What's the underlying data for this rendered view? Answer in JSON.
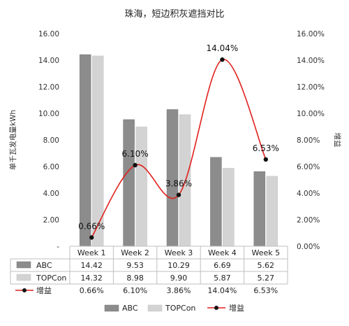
{
  "chart_data": {
    "type": "bar",
    "title": "珠海，短边积灰遮挡对比",
    "ylabel_left": "单千瓦发电量kWh",
    "ylabel_right": "增益",
    "ylim_left": [
      0,
      16
    ],
    "ylim_right": [
      0,
      16
    ],
    "left_ticks": [
      "-",
      "2.00",
      "4.00",
      "6.00",
      "8.00",
      "10.00",
      "12.00",
      "14.00",
      "16.00"
    ],
    "right_ticks": [
      "0.00%",
      "2.00%",
      "4.00%",
      "6.00%",
      "8.00%",
      "10.00%",
      "12.00%",
      "14.00%",
      "16.00%"
    ],
    "categories": [
      "Week 1",
      "Week 2",
      "Week 3",
      "Week 4",
      "Week 5"
    ],
    "series": [
      {
        "name": "ABC",
        "kind": "bar",
        "color": "#8c8c8c",
        "values": [
          14.42,
          9.53,
          10.29,
          6.69,
          5.62
        ],
        "labels": [
          "14.42",
          "9.53",
          "10.29",
          "6.69",
          "5.62"
        ]
      },
      {
        "name": "TOPCon",
        "kind": "bar",
        "color": "#d3d3d3",
        "values": [
          14.32,
          8.98,
          9.9,
          5.87,
          5.27
        ],
        "labels": [
          "14.32",
          "8.98",
          "9.90",
          "5.87",
          "5.27"
        ]
      },
      {
        "name": "增益",
        "kind": "line",
        "color": "#e0201c",
        "values": [
          0.66,
          6.1,
          3.86,
          14.04,
          6.53
        ],
        "labels": [
          "0.66%",
          "6.10%",
          "3.86%",
          "14.04%",
          "6.53%"
        ]
      }
    ],
    "legend_position": "bottom",
    "data_table": true,
    "grid": false
  }
}
